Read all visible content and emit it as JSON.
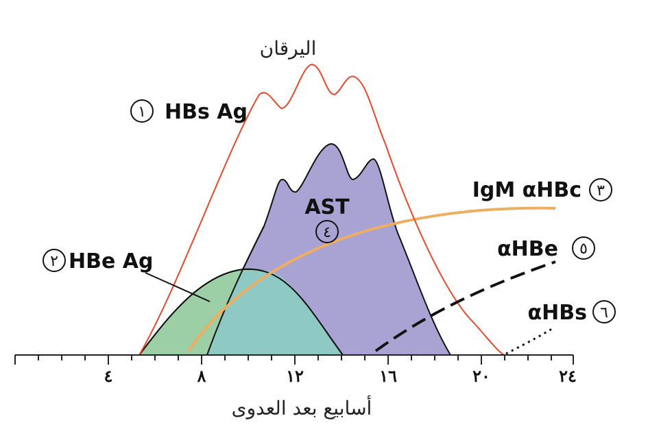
{
  "figure": {
    "jaundice_label": "اليرقان",
    "x_axis_title": "أسابيع بعد العدوى",
    "x_ticks": [
      "٤",
      "٨",
      "١٢",
      "١٦",
      "٢٠",
      "٢٤"
    ],
    "markers": [
      {
        "number": "١",
        "label": "HBs Ag"
      },
      {
        "number": "٢",
        "label": "HBe Ag"
      },
      {
        "number": "٣",
        "label": "IgM αHBc"
      },
      {
        "number": "٤",
        "label": "AST"
      },
      {
        "number": "٥",
        "label": "αHBe"
      },
      {
        "number": "٦",
        "label": "αHBs"
      }
    ],
    "colors": {
      "hbs_ag": "#e8472b",
      "hbe_ag": "#9ccfa6",
      "ast": "#a9a3d4",
      "overlap": "#8fc9c4",
      "igm_ahbc": "#efad62",
      "axis": "#222222"
    }
  }
}
